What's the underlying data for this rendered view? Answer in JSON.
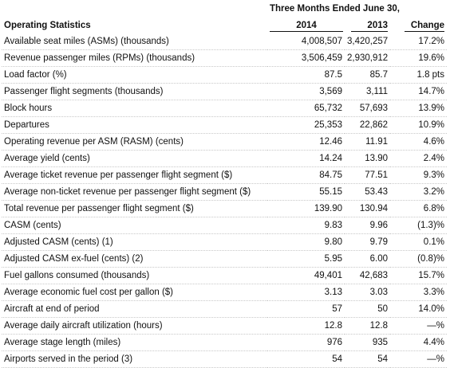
{
  "header": {
    "period": "Three Months Ended June 30,",
    "columns": [
      "Operating Statistics",
      "2014",
      "2013",
      "Change"
    ]
  },
  "table": {
    "rows": [
      [
        "Available seat miles (ASMs) (thousands)",
        "4,008,507",
        "3,420,257",
        "17.2%"
      ],
      [
        "Revenue passenger miles (RPMs) (thousands)",
        "3,506,459",
        "2,930,912",
        "19.6%"
      ],
      [
        "Load factor (%)",
        "87.5",
        "85.7",
        "1.8 pts"
      ],
      [
        "Passenger flight segments (thousands)",
        "3,569",
        "3,111",
        "14.7%"
      ],
      [
        "Block hours",
        "65,732",
        "57,693",
        "13.9%"
      ],
      [
        "Departures",
        "25,353",
        "22,862",
        "10.9%"
      ],
      [
        "Operating revenue per ASM (RASM) (cents)",
        "12.46",
        "11.91",
        "4.6%"
      ],
      [
        "Average yield (cents)",
        "14.24",
        "13.90",
        "2.4%"
      ],
      [
        "Average ticket revenue per passenger flight segment ($)",
        "84.75",
        "77.51",
        "9.3%"
      ],
      [
        "Average non-ticket revenue per passenger flight segment ($)",
        "55.15",
        "53.43",
        "3.2%"
      ],
      [
        "Total revenue per passenger flight segment ($)",
        "139.90",
        "130.94",
        "6.8%"
      ],
      [
        "CASM (cents)",
        "9.83",
        "9.96",
        "(1.3)%"
      ],
      [
        "Adjusted CASM (cents) (1)",
        "9.80",
        "9.79",
        "0.1%"
      ],
      [
        "Adjusted CASM ex-fuel (cents) (2)",
        "5.95",
        "6.00",
        "(0.8)%"
      ],
      [
        "Fuel gallons consumed (thousands)",
        "49,401",
        "42,683",
        "15.7%"
      ],
      [
        "Average economic fuel cost per gallon ($)",
        "3.13",
        "3.03",
        "3.3%"
      ],
      [
        "Aircraft at end of period",
        "57",
        "50",
        "14.0%"
      ],
      [
        "Average daily aircraft utilization (hours)",
        "12.8",
        "12.8",
        "—%"
      ],
      [
        "Average stage length (miles)",
        "976",
        "935",
        "4.4%"
      ],
      [
        "Airports served in the period (3)",
        "54",
        "54",
        "—%"
      ]
    ]
  }
}
